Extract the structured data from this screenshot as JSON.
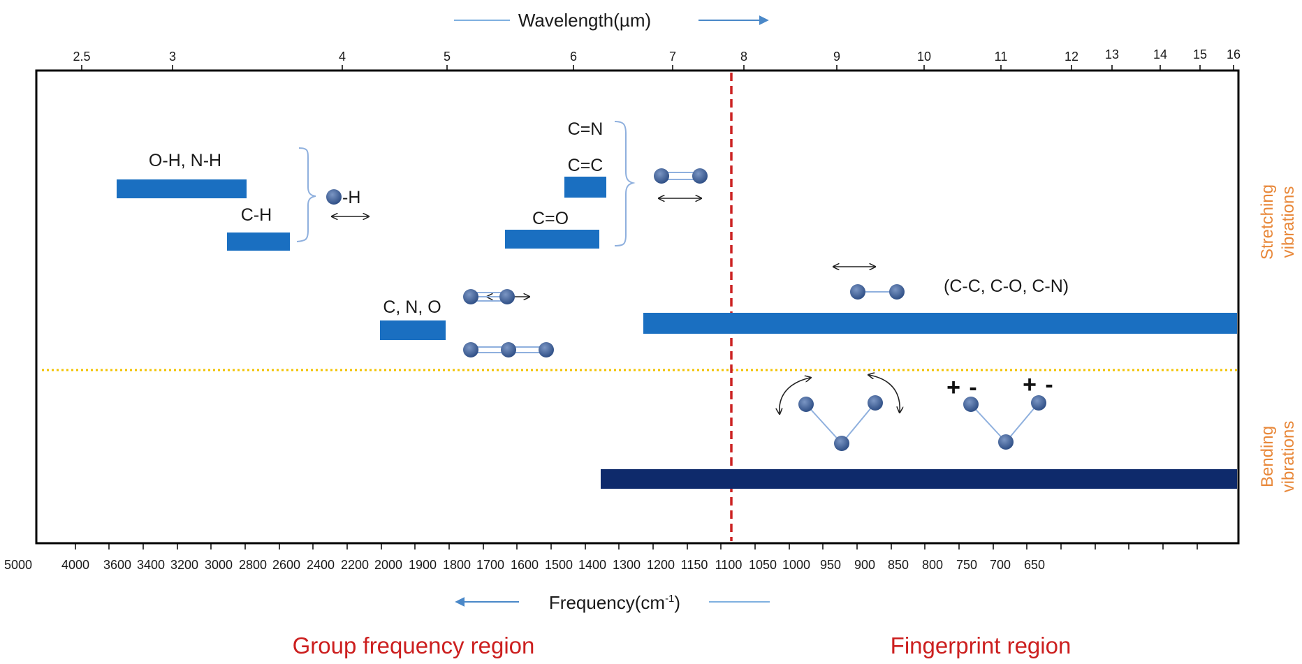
{
  "diagram": {
    "top_axis": {
      "title": "Wavelength(µm)",
      "ticks": [
        "2.5",
        "3",
        "4",
        "5",
        "6",
        "7",
        "8",
        "9",
        "10",
        "11",
        "12",
        "13",
        "14",
        "15",
        "16"
      ]
    },
    "bottom_axis": {
      "title_main": "Frequency(cm",
      "title_sup": "-1",
      "title_close": ")",
      "ticks": [
        "5000",
        "4000",
        "3600",
        "3400",
        "3200",
        "3000",
        "2800",
        "2600",
        "2400",
        "2200",
        "2000",
        "1900",
        "1800",
        "1700",
        "1600",
        "1500",
        "1400",
        "1300",
        "1200",
        "1150",
        "1100",
        "1050",
        "1000",
        "950",
        "900",
        "850",
        "800",
        "750",
        "700",
        "650"
      ]
    },
    "bond_labels": {
      "oh_nh": "O-H, N-H",
      "ch": "C-H",
      "x_h": "-H",
      "cn_double": "C=N",
      "cc_double": "C=C",
      "co_double": "C=O",
      "triple": "C, N, O",
      "single": "(C-C, C-O, C-N)"
    },
    "side_labels": {
      "stretching_1": "Stretching",
      "stretching_2": "vibrations",
      "bending_1": "Bending",
      "bending_2": "vibrations"
    },
    "region_labels": {
      "group": "Group frequency region",
      "fingerprint": "Fingerprint region"
    },
    "signs": {
      "plus": "+",
      "minus": "-"
    },
    "colors": {
      "band": "#1a6fc1",
      "band_dark": "#0e2a6b",
      "boundary": "#cc2222",
      "separator": "#f2c200",
      "side_label": "#e8883a",
      "region_label": "#cc1f1f",
      "atom": "#3b5e9a",
      "bracket": "#8fb0de",
      "arrow": "#4a88c8"
    }
  }
}
